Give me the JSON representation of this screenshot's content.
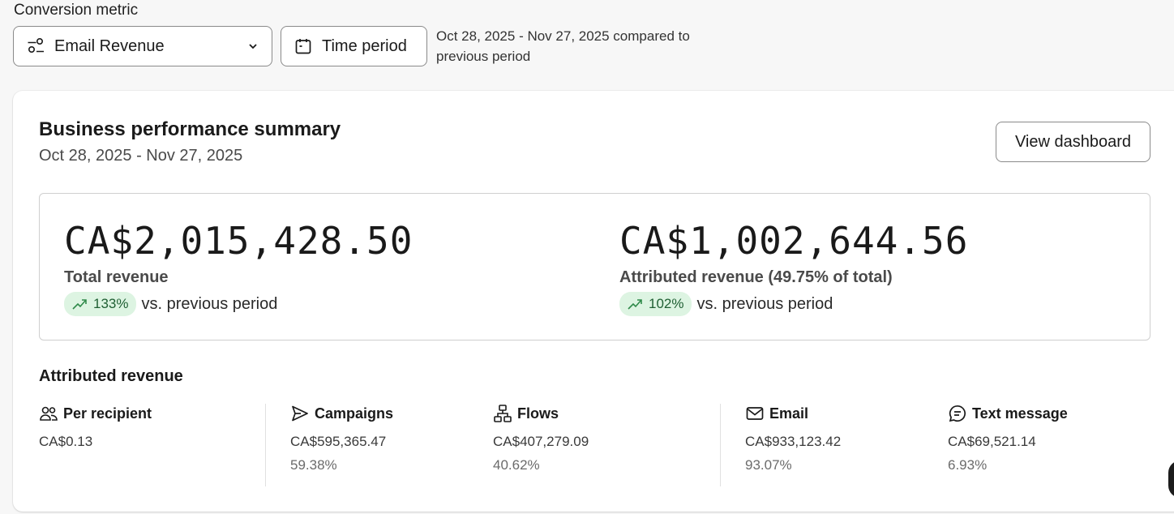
{
  "filters": {
    "label": "Conversion metric",
    "metric_value": "Email Revenue",
    "time_button_label": "Time period",
    "compare_text": "Oct 28, 2025 - Nov 27, 2025 compared to previous period"
  },
  "summary": {
    "title": "Business performance summary",
    "date_range": "Oct 28, 2025 - Nov 27, 2025",
    "view_button_label": "View dashboard",
    "total": {
      "value": "CA$2,015,428.50",
      "label": "Total revenue",
      "change": "133%",
      "change_suffix": "vs. previous period"
    },
    "attributed": {
      "value": "CA$1,002,644.56",
      "label": "Attributed revenue (49.75% of total)",
      "change": "102%",
      "change_suffix": "vs. previous period"
    }
  },
  "attributed_revenue": {
    "title": "Attributed revenue",
    "per_recipient": {
      "label": "Per recipient",
      "value": "CA$0.13"
    },
    "campaigns": {
      "label": "Campaigns",
      "value": "CA$595,365.47",
      "pct": "59.38%"
    },
    "flows": {
      "label": "Flows",
      "value": "CA$407,279.09",
      "pct": "40.62%"
    },
    "email": {
      "label": "Email",
      "value": "CA$933,123.42",
      "pct": "93.07%"
    },
    "text_message": {
      "label": "Text message",
      "value": "CA$69,521.14",
      "pct": "6.93%"
    }
  },
  "icons": {
    "metric": "conversion-icon",
    "chevron": "chevron-down-icon",
    "calendar": "calendar-icon",
    "trend": "trending-up-icon",
    "per_recipient": "users-icon",
    "campaigns": "send-icon",
    "flows": "flow-icon",
    "email": "mail-icon",
    "text_message": "message-icon"
  },
  "colors": {
    "badge_bg": "#ddf4e2",
    "badge_text": "#1f5f33",
    "page_bg": "#f7f7f7"
  }
}
